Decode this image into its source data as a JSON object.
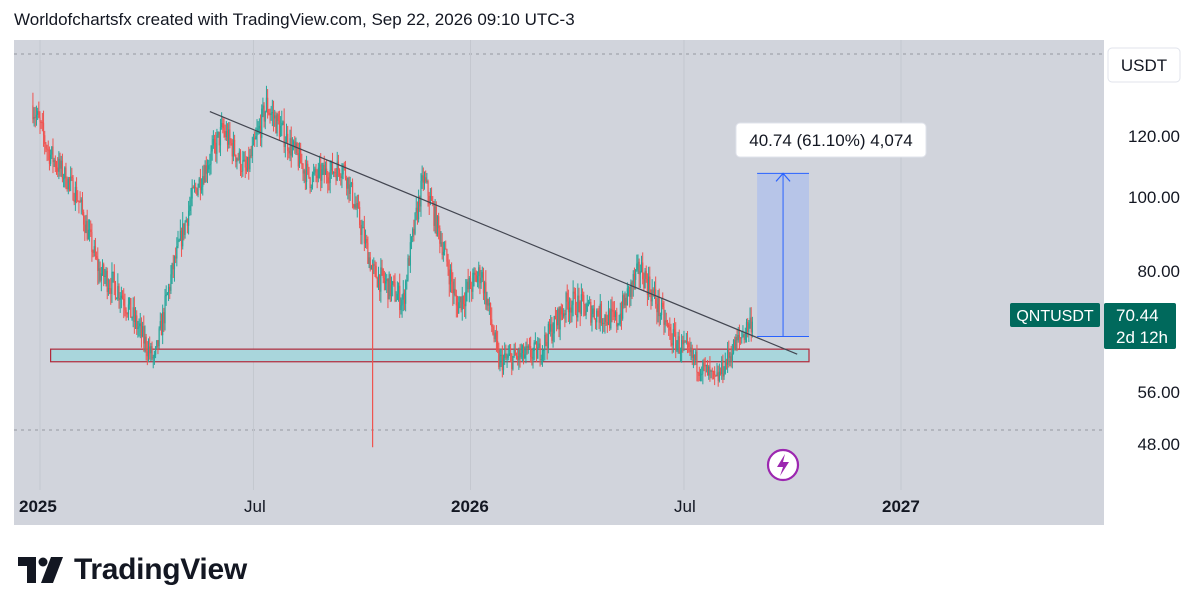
{
  "header": {
    "attribution": "Worldofchartsfx created with TradingView.com, Sep 22, 2026 09:10 UTC-3"
  },
  "price_axis": {
    "currency": "USDT",
    "ticks": [
      "120.00",
      "100.00",
      "80.00",
      "56.00",
      "48.00"
    ],
    "symbol": "QNTUSDT",
    "last_price": "70.44",
    "countdown": "2d 12h"
  },
  "time_axis": {
    "labels": [
      {
        "text": "2025",
        "bold": true
      },
      {
        "text": "Jul",
        "bold": false
      },
      {
        "text": "2026",
        "bold": true
      },
      {
        "text": "Jul",
        "bold": false
      },
      {
        "text": "2027",
        "bold": true
      }
    ]
  },
  "measure_label": "40.74 (61.10%) 4,074",
  "logo": {
    "text": "TradingView"
  },
  "colors": {
    "background": "#d1d4dc",
    "up": "#26a69a",
    "down": "#ef5350",
    "trendline": "#434651",
    "zone_fill": "#a9d6dc",
    "zone_border": "#b2283a",
    "projection_fill": "#b3c2ea",
    "projection_line": "#2962ff",
    "label_badge": "#00695c",
    "event_icon": "#9c27b0"
  },
  "chart_data": {
    "type": "candlestick",
    "symbol": "QNTUSDT",
    "currency": "USDT",
    "x_range": [
      "2025-01",
      "2026-12"
    ],
    "y_ticks": [
      48,
      56,
      80,
      100,
      120
    ],
    "last_price": 70.44,
    "price_path_anchors": [
      {
        "date": "2024-12-26",
        "close": 130
      },
      {
        "date": "2025-01-08",
        "close": 115
      },
      {
        "date": "2025-02-01",
        "close": 101
      },
      {
        "date": "2025-02-20",
        "close": 80
      },
      {
        "date": "2025-03-10",
        "close": 76
      },
      {
        "date": "2025-04-08",
        "close": 62
      },
      {
        "date": "2025-05-10",
        "close": 100
      },
      {
        "date": "2025-06-05",
        "close": 122
      },
      {
        "date": "2025-06-25",
        "close": 108
      },
      {
        "date": "2025-07-12",
        "close": 130
      },
      {
        "date": "2025-08-18",
        "close": 106
      },
      {
        "date": "2025-09-15",
        "close": 110
      },
      {
        "date": "2025-10-10",
        "close": 80
      },
      {
        "date": "2025-11-05",
        "close": 74
      },
      {
        "date": "2025-11-22",
        "close": 106
      },
      {
        "date": "2025-12-20",
        "close": 73
      },
      {
        "date": "2026-01-10",
        "close": 80
      },
      {
        "date": "2026-01-25",
        "close": 62
      },
      {
        "date": "2026-02-28",
        "close": 64
      },
      {
        "date": "2026-03-25",
        "close": 74
      },
      {
        "date": "2026-05-05",
        "close": 70
      },
      {
        "date": "2026-05-25",
        "close": 81
      },
      {
        "date": "2026-06-20",
        "close": 67
      },
      {
        "date": "2026-07-28",
        "close": 58
      },
      {
        "date": "2026-08-10",
        "close": 64
      },
      {
        "date": "2026-08-28",
        "close": 70.44
      }
    ],
    "support_zone": {
      "low": 62.0,
      "high": 64.5,
      "from": "2025-01-10",
      "to": "2026-10-15"
    },
    "trendline": {
      "from": {
        "date": "2025-05-25",
        "price": 128
      },
      "to": {
        "date": "2026-10-05",
        "price": 63.5
      }
    },
    "projection": {
      "from_date": "2026-09-01",
      "to_date": "2026-10-15",
      "base": 67,
      "target": 107.74,
      "change": 40.74,
      "percent": 61.1,
      "ticks": 4074
    }
  }
}
